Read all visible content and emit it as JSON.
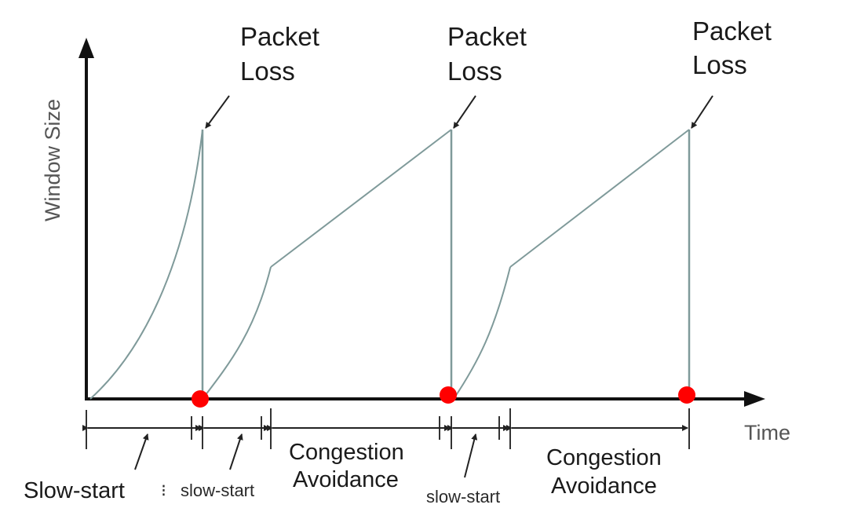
{
  "colors": {
    "axis": "#111111",
    "curve": "#7f9a9a",
    "loss_marker": "#ff0000",
    "text": "#1a1a1a"
  },
  "axes": {
    "y_label": "Window Size",
    "x_label": "Time"
  },
  "packet_loss_labels": [
    {
      "line1": "Packet",
      "line2": "Loss"
    },
    {
      "line1": "Packet",
      "line2": "Loss"
    },
    {
      "line1": "Packet",
      "line2": "Loss"
    }
  ],
  "phases": [
    {
      "label": "Slow-start"
    },
    {
      "label": "slow-start"
    },
    {
      "line1": "Congestion",
      "line2": "Avoidance"
    },
    {
      "label": "slow-start"
    },
    {
      "line1": "Congestion",
      "line2": "Avoidance"
    }
  ],
  "separator_glyph": "⁝"
}
